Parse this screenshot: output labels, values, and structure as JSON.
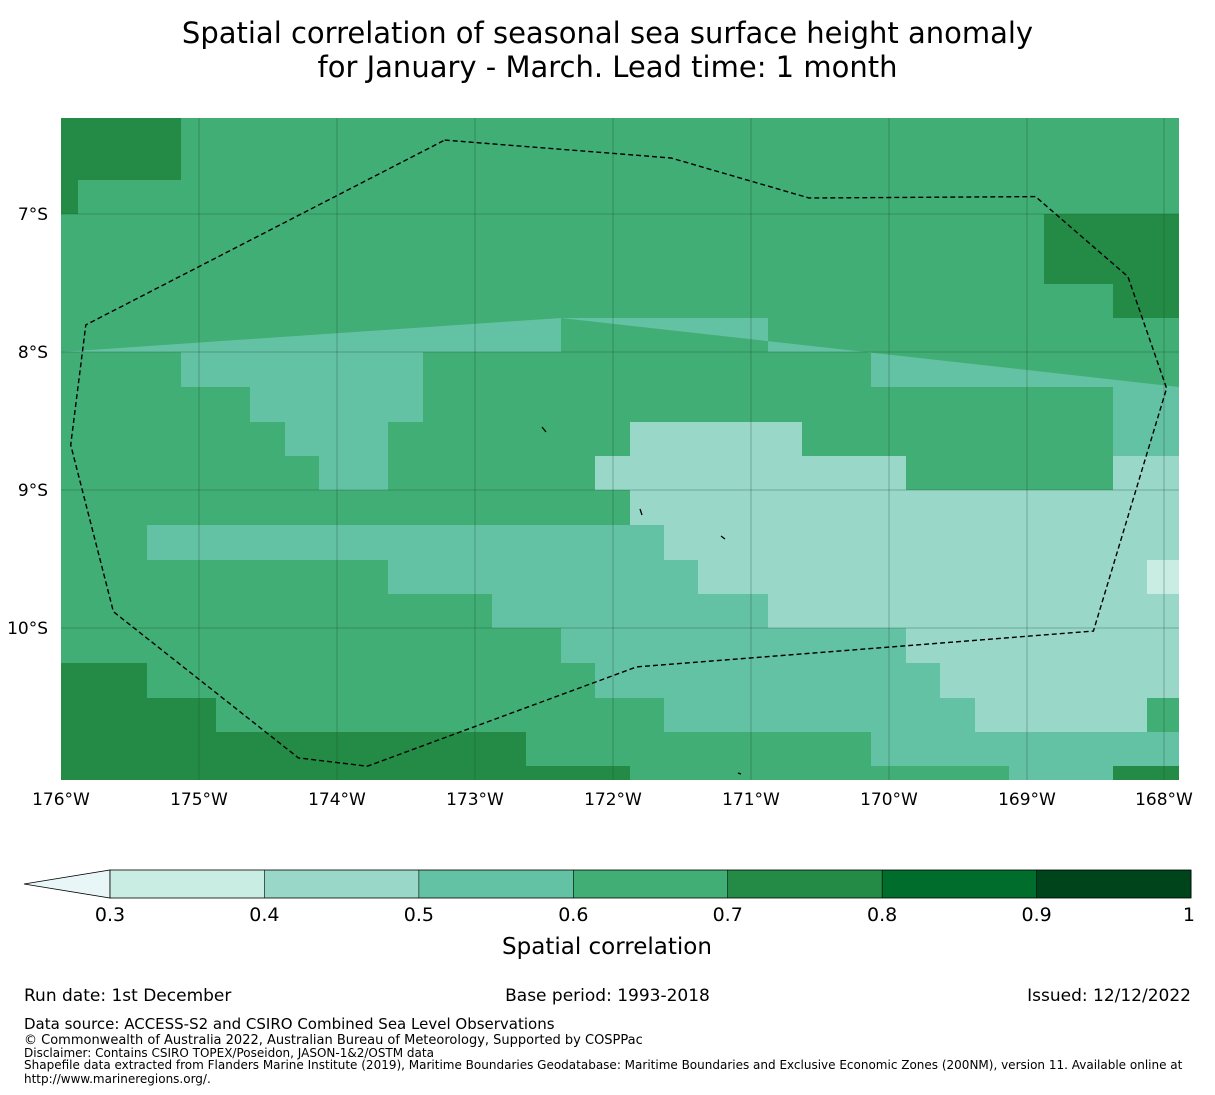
{
  "title": {
    "line1": "Spatial correlation of seasonal sea surface height anomaly",
    "line2": "for January - March. Lead time: 1 month"
  },
  "map": {
    "lat_labels": [
      "7°S",
      "8°S",
      "9°S",
      "10°S"
    ],
    "lon_labels": [
      "176°W",
      "175°W",
      "174°W",
      "173°W",
      "172°W",
      "171°W",
      "170°W",
      "169°W",
      "168°W"
    ],
    "grid_colors": {
      "0.3-0.4": "#c9ece3",
      "0.4-0.5": "#99d8c9",
      "0.5-0.6": "#64c2a4",
      "0.6-0.7": "#41ae76",
      "0.7-0.8": "#238b45",
      "0.8-0.9": "#006d2c",
      "0.9-1": "#00441b"
    },
    "lon_range": [
      -176,
      -167.9
    ],
    "lat_range": [
      -11.1,
      -6.3
    ],
    "eez_boundary": [
      [
        -173.22,
        -6.46
      ],
      [
        -171.58,
        -6.59
      ],
      [
        -170.58,
        -6.88
      ],
      [
        -168.94,
        -6.87
      ],
      [
        -168.27,
        -7.45
      ],
      [
        -167.99,
        -8.26
      ],
      [
        -168.52,
        -10.02
      ],
      [
        -171.83,
        -10.28
      ],
      [
        -173.78,
        -11.0
      ],
      [
        -174.28,
        -10.94
      ],
      [
        -175.62,
        -9.88
      ],
      [
        -175.93,
        -8.67
      ],
      [
        -175.82,
        -7.8
      ],
      [
        -173.22,
        -6.46
      ]
    ]
  },
  "colorbar": {
    "label": "Spatial correlation",
    "ticks": [
      "0.3",
      "0.4",
      "0.5",
      "0.6",
      "0.7",
      "0.8",
      "0.9",
      "1"
    ],
    "colors": [
      "#c9ece3",
      "#99d8c9",
      "#64c2a4",
      "#41ae76",
      "#238b45",
      "#006d2c",
      "#00441b"
    ],
    "extend_color": "#e8f6f8"
  },
  "footer": {
    "run_date": "Run date: 1st December",
    "base_period": "Base period: 1993-2018",
    "issued": "Issued: 12/12/2022",
    "data_source": "Data source: ACCESS-S2 and CSIRO Combined Sea Level Observations",
    "copyright": "© Commonwealth of Australia 2022, Australian Bureau of Meteorology, Supported by COSPPac",
    "disclaimer": "Disclaimer: Contains CSIRO TOPEX/Poseidon, JASON-1&2/OSTM data",
    "shapefile_line1": "Shapefile data extracted from Flanders Marine Institute (2019), Maritime Boundaries Geodatabase: Maritime Boundaries and Exclusive Economic Zones (200NM), version 11. Available online at",
    "shapefile_line2": "http://www.marineregions.org/."
  }
}
